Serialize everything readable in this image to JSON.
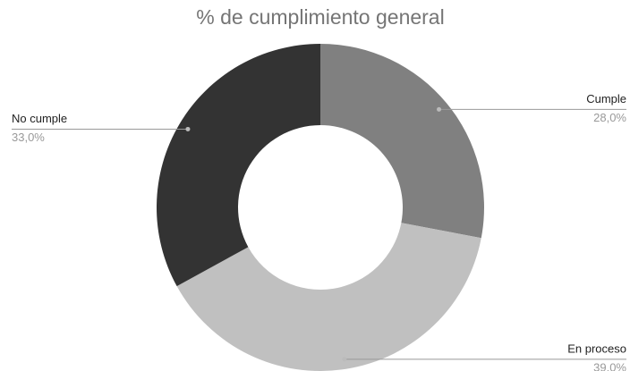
{
  "chart_data": {
    "type": "donut",
    "title": "% de cumplimiento general",
    "categories": [
      "Cumple",
      "En proceso",
      "No cumple"
    ],
    "values": [
      28,
      39,
      33
    ],
    "value_labels": [
      "28,0%",
      "39,0%",
      "33,0%"
    ],
    "colors": [
      "#808080",
      "#c0c0c0",
      "#333333"
    ]
  }
}
